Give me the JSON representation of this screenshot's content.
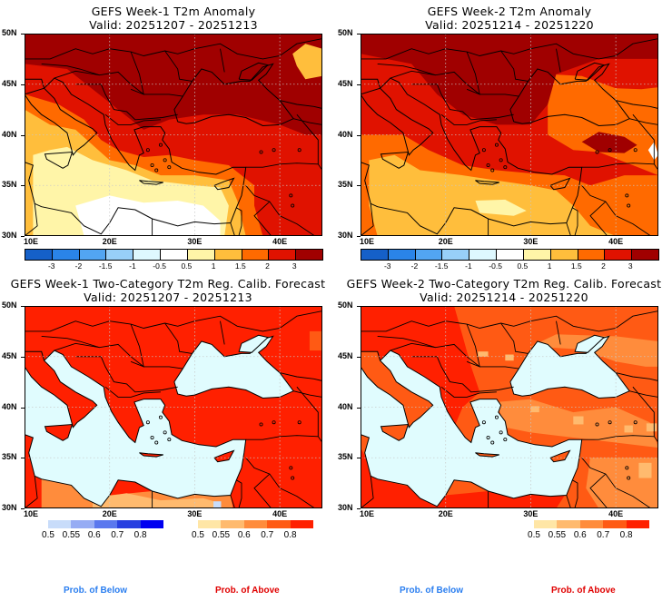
{
  "chart_data": [
    {
      "type": "heatmap",
      "title": "GEFS Week-1 T2m Anomaly",
      "subtitle": "Valid: 20251207 - 20251213",
      "xlim": [
        10,
        45
      ],
      "ylim": [
        30,
        50
      ],
      "x_ticks": [
        "10E",
        "20E",
        "30E",
        "40E"
      ],
      "y_ticks": [
        "30N",
        "35N",
        "40N",
        "45N",
        "50N"
      ],
      "colorbar": {
        "labels": [
          "-3",
          "-2",
          "-1.5",
          "-1",
          "-0.5",
          "0.5",
          "1",
          "1.5",
          "2",
          "3"
        ],
        "colors": [
          "#1560c8",
          "#2a84e8",
          "#52a5f2",
          "#98cff8",
          "#def8fe",
          "#ffffff",
          "#fff5a8",
          "#ffbe3c",
          "#ff6a00",
          "#e01200",
          "#a00000"
        ]
      }
    },
    {
      "type": "heatmap",
      "title": "GEFS Week-2 T2m Anomaly",
      "subtitle": "Valid: 20251214 - 20251220",
      "xlim": [
        10,
        45
      ],
      "ylim": [
        30,
        50
      ],
      "x_ticks": [
        "10E",
        "20E",
        "30E",
        "40E"
      ],
      "y_ticks": [
        "30N",
        "35N",
        "40N",
        "45N",
        "50N"
      ],
      "colorbar": {
        "labels": [
          "-3",
          "-2",
          "-1.5",
          "-1",
          "-0.5",
          "0.5",
          "1",
          "1.5",
          "2",
          "3"
        ],
        "colors": [
          "#1560c8",
          "#2a84e8",
          "#52a5f2",
          "#98cff8",
          "#def8fe",
          "#ffffff",
          "#fff5a8",
          "#ffbe3c",
          "#ff6a00",
          "#e01200",
          "#a00000"
        ]
      }
    },
    {
      "type": "heatmap",
      "title": "GEFS Week-1 Two-Category T2m Reg. Calib. Forecast",
      "subtitle": "Valid: 20251207 - 20251213",
      "xlim": [
        10,
        45
      ],
      "ylim": [
        30,
        50
      ],
      "x_ticks": [
        "10E",
        "20E",
        "30E",
        "40E"
      ],
      "y_ticks": [
        "30N",
        "35N",
        "40N",
        "45N",
        "50N"
      ],
      "below_colorbar": {
        "labels": [
          "0.5",
          "0.55",
          "0.6",
          "0.7",
          "0.8"
        ],
        "colors": [
          "#c8dcfa",
          "#96acf4",
          "#5a78ee",
          "#2840e0",
          "#0000f0"
        ]
      },
      "above_colorbar": {
        "labels": [
          "0.5",
          "0.55",
          "0.6",
          "0.7",
          "0.8"
        ],
        "colors": [
          "#ffe6a6",
          "#ffba6e",
          "#ff8c3c",
          "#ff5a14",
          "#ff2000"
        ]
      },
      "legend_below": "Prob. of Below",
      "legend_above": "Prob. of Above"
    },
    {
      "type": "heatmap",
      "title": "GEFS Week-2 Two-Category T2m Reg. Calib. Forecast",
      "subtitle": "Valid: 20251214 - 20251220",
      "xlim": [
        10,
        45
      ],
      "ylim": [
        30,
        50
      ],
      "x_ticks": [
        "10E",
        "20E",
        "30E",
        "40E"
      ],
      "y_ticks": [
        "30N",
        "35N",
        "40N",
        "45N",
        "50N"
      ],
      "above_colorbar": {
        "labels": [
          "0.5",
          "0.55",
          "0.6",
          "0.7",
          "0.8"
        ],
        "colors": [
          "#ffe6a6",
          "#ffba6e",
          "#ff8c3c",
          "#ff5a14",
          "#ff2000"
        ]
      },
      "legend_below": "Prob. of Below",
      "legend_above": "Prob. of Above"
    }
  ],
  "colors": {
    "sea": "#e0fcfe",
    "below_text": "#2a7ef0",
    "above_text": "#e00000"
  }
}
